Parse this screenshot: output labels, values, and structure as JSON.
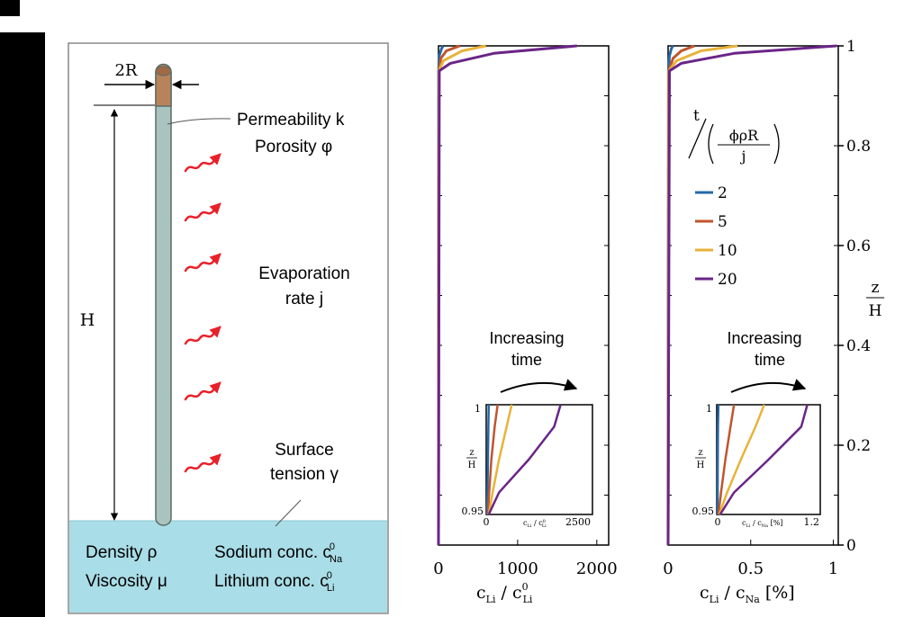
{
  "schematic": {
    "diameter_label": "2R",
    "height_label": "H",
    "permeability": "Permeability k",
    "porosity": "Porosity φ",
    "evaporation_line1": "Evaporation",
    "evaporation_line2": "rate j",
    "surface_line1": "Surface",
    "surface_line2": "tension γ",
    "density": "Density ρ",
    "viscosity": "Viscosity μ",
    "sodium": "Sodium conc. c",
    "sodium_sup": "0",
    "sodium_sub": "Na",
    "lithium": "Lithium conc. c",
    "lithium_sup": "0",
    "lithium_sub": "Li",
    "colors": {
      "rod": "#a9c4bf",
      "rod_top": "#b8835a",
      "liquid": "#a9dde7",
      "arrow": "#e8202a"
    }
  },
  "chart_data": [
    {
      "type": "line",
      "x_ticks": [
        "0",
        "1000",
        "2000"
      ],
      "xlim": [
        0,
        2150
      ],
      "ylim": [
        0,
        1
      ],
      "xlabel_main": "c",
      "xlabel_sub1": "Li",
      "xlabel_sep": " / c",
      "xlabel_sup2": "0",
      "xlabel_sub2": "Li",
      "annotation_line1": "Increasing",
      "annotation_line2": "time",
      "series": [
        {
          "color": "#2468a6",
          "points": [
            [
              0,
              0
            ],
            [
              2,
              0.95
            ],
            [
              8,
              0.98
            ],
            [
              40,
              0.995
            ],
            [
              60,
              1
            ]
          ]
        },
        {
          "color": "#c0552d",
          "points": [
            [
              0,
              0
            ],
            [
              4,
              0.95
            ],
            [
              30,
              0.975
            ],
            [
              100,
              0.99
            ],
            [
              270,
              1
            ]
          ]
        },
        {
          "color": "#e8b33a",
          "points": [
            [
              0,
              0
            ],
            [
              6,
              0.95
            ],
            [
              60,
              0.97
            ],
            [
              300,
              0.99
            ],
            [
              600,
              1
            ]
          ]
        },
        {
          "color": "#6a2587",
          "points": [
            [
              0,
              0
            ],
            [
              10,
              0.95
            ],
            [
              150,
              0.965
            ],
            [
              700,
              0.985
            ],
            [
              1750,
              1
            ]
          ]
        }
      ],
      "inset": {
        "xlim": [
          0,
          2500
        ],
        "ylim": [
          0.95,
          1
        ],
        "y_ticks": [
          "1",
          "0.95"
        ],
        "x_tick_left": "0",
        "x_tick_right": "2500",
        "ylabel_num": "z",
        "ylabel_den": "H",
        "xlabel_main": "c",
        "xlabel_sub1": "Li",
        "xlabel_sep": " / c",
        "xlabel_sup2": "0",
        "xlabel_sub2": "Li",
        "series": [
          {
            "color": "#2468a6",
            "points": [
              [
                20,
                0.95
              ],
              [
                30,
                0.96
              ],
              [
                40,
                0.975
              ],
              [
                50,
                0.99
              ],
              [
                60,
                1
              ]
            ]
          },
          {
            "color": "#c0552d",
            "points": [
              [
                40,
                0.95
              ],
              [
                70,
                0.96
              ],
              [
                120,
                0.975
              ],
              [
                200,
                0.99
              ],
              [
                270,
                1
              ]
            ]
          },
          {
            "color": "#e8b33a",
            "points": [
              [
                60,
                0.95
              ],
              [
                150,
                0.96
              ],
              [
                300,
                0.975
              ],
              [
                480,
                0.99
              ],
              [
                600,
                1
              ]
            ]
          },
          {
            "color": "#6a2587",
            "points": [
              [
                60,
                0.95
              ],
              [
                300,
                0.96
              ],
              [
                1000,
                0.975
              ],
              [
                1600,
                0.99
              ],
              [
                1750,
                1
              ]
            ]
          }
        ]
      }
    },
    {
      "type": "line",
      "x_ticks": [
        "0",
        "0.5",
        "1"
      ],
      "xlim": [
        0,
        1.03
      ],
      "ylim": [
        0,
        1
      ],
      "y_ticks": [
        "0",
        "0.2",
        "0.4",
        "0.6",
        "0.8",
        "1"
      ],
      "ylabel_num": "z",
      "ylabel_den": "H",
      "xlabel_main": "c",
      "xlabel_sub1": "Li",
      "xlabel_sep": " / c",
      "xlabel_sub2": "Na",
      "xlabel_unit": " [%]",
      "annotation_line1": "Increasing",
      "annotation_line2": "time",
      "legend": {
        "title_t": "t",
        "title_num": "ϕρR",
        "title_den": "j",
        "entries": [
          {
            "label": "2",
            "color": "#2468a6"
          },
          {
            "label": "5",
            "color": "#c0552d"
          },
          {
            "label": "10",
            "color": "#e8b33a"
          },
          {
            "label": "20",
            "color": "#6a2587"
          }
        ]
      },
      "series": [
        {
          "color": "#2468a6",
          "points": [
            [
              0,
              0
            ],
            [
              0.002,
              0.95
            ],
            [
              0.008,
              0.98
            ],
            [
              0.02,
              0.995
            ],
            [
              0.03,
              1
            ]
          ]
        },
        {
          "color": "#c0552d",
          "points": [
            [
              0,
              0
            ],
            [
              0.003,
              0.95
            ],
            [
              0.03,
              0.975
            ],
            [
              0.08,
              0.99
            ],
            [
              0.16,
              1
            ]
          ]
        },
        {
          "color": "#e8b33a",
          "points": [
            [
              0,
              0
            ],
            [
              0.005,
              0.95
            ],
            [
              0.05,
              0.97
            ],
            [
              0.2,
              0.99
            ],
            [
              0.42,
              1
            ]
          ]
        },
        {
          "color": "#6a2587",
          "points": [
            [
              0,
              0
            ],
            [
              0.008,
              0.95
            ],
            [
              0.08,
              0.965
            ],
            [
              0.4,
              0.985
            ],
            [
              1.02,
              1
            ]
          ]
        }
      ],
      "inset": {
        "xlim": [
          0,
          1.2
        ],
        "ylim": [
          0.95,
          1
        ],
        "y_ticks": [
          "1",
          "0.95"
        ],
        "x_tick_left": "0",
        "x_tick_right": "1.2",
        "ylabel_num": "z",
        "ylabel_den": "H",
        "xlabel_main": "c",
        "xlabel_sub1": "Li",
        "xlabel_sep": " / c",
        "xlabel_sub2": "Na",
        "xlabel_unit": " [%]",
        "series": [
          {
            "color": "#2468a6",
            "points": [
              [
                0.01,
                0.95
              ],
              [
                0.012,
                0.97
              ],
              [
                0.015,
                0.99
              ],
              [
                0.02,
                1
              ]
            ]
          },
          {
            "color": "#c0552d",
            "points": [
              [
                0.02,
                0.95
              ],
              [
                0.05,
                0.96
              ],
              [
                0.1,
                0.975
              ],
              [
                0.16,
                0.99
              ],
              [
                0.2,
                1
              ]
            ]
          },
          {
            "color": "#e8b33a",
            "points": [
              [
                0.03,
                0.95
              ],
              [
                0.12,
                0.96
              ],
              [
                0.28,
                0.975
              ],
              [
                0.45,
                0.99
              ],
              [
                0.55,
                1
              ]
            ]
          },
          {
            "color": "#6a2587",
            "points": [
              [
                0.04,
                0.95
              ],
              [
                0.2,
                0.96
              ],
              [
                0.6,
                0.975
              ],
              [
                0.98,
                0.99
              ],
              [
                1.05,
                1
              ]
            ]
          }
        ]
      }
    }
  ]
}
